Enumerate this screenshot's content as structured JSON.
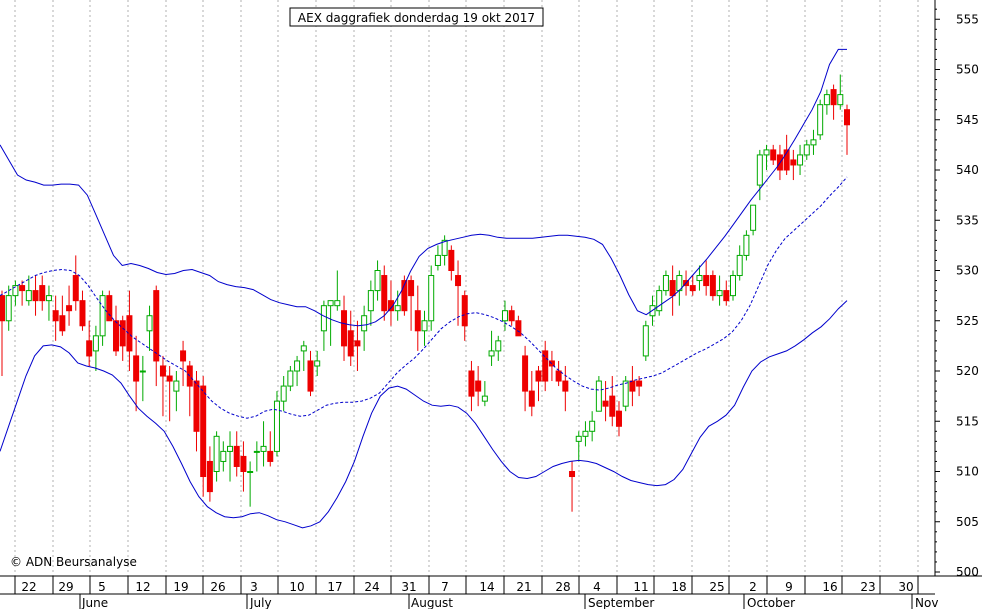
{
  "chart_data": {
    "type": "candlestick",
    "title": "AEX daggrafiek donderdag 19 okt 2017",
    "copyright": "© ADN Beursanalyse",
    "ylim": [
      500,
      557
    ],
    "y_ticks": [
      500,
      505,
      510,
      515,
      520,
      525,
      530,
      535,
      540,
      545,
      550,
      555
    ],
    "grid": true,
    "x_day_labels": [
      "22",
      "29",
      "5",
      "12",
      "19",
      "26",
      "3",
      "10",
      "17",
      "24",
      "31",
      "7",
      "14",
      "21",
      "28",
      "4",
      "11",
      "18",
      "25",
      "2",
      "9",
      "16",
      "23",
      "30"
    ],
    "x_month_labels": [
      "June",
      "July",
      "August",
      "September",
      "October",
      "Nov"
    ],
    "colors": {
      "up": "#00aa00",
      "down": "#ee0000",
      "band": "#0000cc",
      "grid": "#b0b0b0",
      "axis": "#000000"
    },
    "series": [
      {
        "type": "candlestick",
        "candles": [
          [
            527.5,
            528.0,
            519.5,
            525.0
          ],
          [
            525.0,
            528.5,
            524.0,
            527.5
          ],
          [
            527.5,
            529.0,
            526.5,
            528.5
          ],
          [
            528.5,
            529.0,
            526.5,
            528.0
          ],
          [
            527.0,
            529.5,
            526.5,
            528.0
          ],
          [
            528.0,
            529.5,
            525.5,
            527.0
          ],
          [
            528.5,
            529.5,
            526.0,
            527.0
          ],
          [
            527.0,
            528.5,
            525.0,
            527.5
          ],
          [
            526.0,
            527.5,
            523.0,
            525.0
          ],
          [
            525.5,
            527.5,
            523.5,
            524.0
          ],
          [
            526.5,
            528.5,
            524.5,
            526.0
          ],
          [
            529.5,
            531.5,
            526.0,
            527.0
          ],
          [
            527.0,
            528.0,
            524.0,
            524.5
          ],
          [
            523.0,
            525.0,
            520.5,
            521.5
          ],
          [
            522.0,
            524.5,
            520.0,
            523.5
          ],
          [
            523.5,
            528.0,
            522.5,
            527.5
          ],
          [
            527.5,
            528.0,
            525.0,
            525.0
          ],
          [
            525.0,
            526.5,
            521.5,
            522.0
          ],
          [
            525.0,
            525.5,
            521.0,
            522.5
          ],
          [
            525.5,
            528.0,
            520.0,
            522.0
          ],
          [
            521.5,
            523.5,
            516.0,
            519.0
          ],
          [
            520.0,
            521.5,
            517.0,
            520.0
          ],
          [
            524.0,
            526.5,
            522.0,
            525.5
          ],
          [
            528.0,
            528.5,
            518.5,
            521.0
          ],
          [
            520.5,
            521.5,
            515.5,
            519.5
          ],
          [
            519.5,
            520.5,
            515.0,
            519.0
          ],
          [
            518.0,
            520.0,
            516.0,
            519.0
          ],
          [
            522.0,
            523.0,
            518.5,
            521.0
          ],
          [
            520.5,
            521.0,
            515.5,
            518.5
          ],
          [
            519.0,
            520.0,
            512.0,
            514.0
          ],
          [
            518.5,
            519.5,
            507.5,
            509.5
          ],
          [
            511.0,
            512.5,
            507.0,
            508.0
          ],
          [
            510.0,
            514.0,
            509.0,
            513.5
          ],
          [
            511.0,
            513.0,
            510.0,
            512.0
          ],
          [
            512.0,
            514.0,
            509.0,
            512.5
          ],
          [
            512.5,
            514.0,
            509.5,
            510.5
          ],
          [
            511.5,
            513.0,
            508.0,
            510.0
          ],
          [
            510.0,
            511.0,
            506.5,
            510.0
          ],
          [
            512.0,
            513.0,
            510.0,
            512.0
          ],
          [
            512.0,
            515.0,
            510.5,
            512.5
          ],
          [
            512.0,
            514.0,
            510.5,
            511.0
          ],
          [
            512.0,
            518.0,
            511.5,
            517.0
          ],
          [
            517.0,
            519.5,
            516.0,
            518.5
          ],
          [
            518.5,
            520.5,
            518.0,
            520.0
          ],
          [
            520.0,
            521.5,
            518.5,
            521.0
          ],
          [
            522.0,
            523.0,
            520.0,
            522.5
          ],
          [
            521.0,
            522.0,
            517.5,
            518.0
          ],
          [
            520.5,
            522.0,
            519.5,
            521.0
          ],
          [
            524.0,
            527.0,
            522.0,
            526.5
          ],
          [
            526.5,
            527.0,
            522.5,
            527.0
          ],
          [
            526.5,
            530.0,
            526.0,
            527.0
          ],
          [
            526.0,
            527.5,
            521.0,
            522.5
          ],
          [
            524.0,
            526.0,
            520.5,
            521.5
          ],
          [
            523.0,
            525.0,
            520.0,
            522.5
          ],
          [
            524.0,
            526.5,
            522.0,
            525.5
          ],
          [
            526.0,
            529.0,
            524.5,
            528.0
          ],
          [
            528.0,
            531.0,
            527.0,
            530.0
          ],
          [
            529.5,
            530.5,
            525.0,
            526.0
          ],
          [
            527.0,
            529.0,
            524.5,
            526.0
          ],
          [
            526.0,
            528.0,
            525.0,
            526.5
          ],
          [
            529.0,
            529.5,
            525.5,
            526.0
          ],
          [
            529.0,
            529.5,
            524.0,
            527.5
          ],
          [
            526.0,
            528.5,
            522.0,
            524.0
          ],
          [
            524.0,
            526.0,
            522.5,
            525.0
          ],
          [
            525.0,
            530.5,
            524.0,
            529.5
          ],
          [
            530.5,
            532.5,
            530.0,
            531.5
          ],
          [
            531.5,
            533.5,
            530.5,
            533.0
          ],
          [
            532.0,
            532.5,
            529.0,
            530.0
          ],
          [
            529.5,
            531.0,
            524.5,
            528.5
          ],
          [
            527.5,
            528.0,
            523.0,
            524.5
          ],
          [
            520.0,
            521.0,
            516.0,
            517.5
          ],
          [
            519.0,
            520.5,
            516.5,
            518.0
          ],
          [
            517.0,
            519.0,
            516.5,
            517.5
          ],
          [
            521.5,
            524.0,
            520.5,
            522.0
          ],
          [
            522.0,
            523.5,
            521.0,
            523.0
          ],
          [
            525.0,
            527.0,
            524.0,
            526.0
          ],
          [
            526.0,
            526.5,
            524.5,
            525.0
          ],
          [
            525.0,
            525.5,
            523.5,
            523.5
          ],
          [
            521.5,
            522.5,
            516.0,
            518.0
          ],
          [
            518.0,
            520.0,
            515.5,
            516.5
          ],
          [
            520.0,
            520.5,
            517.0,
            519.0
          ],
          [
            522.0,
            523.0,
            518.0,
            519.0
          ],
          [
            521.0,
            522.0,
            519.0,
            520.5
          ],
          [
            520.0,
            521.0,
            518.5,
            519.0
          ],
          [
            519.0,
            520.5,
            516.0,
            518.0
          ],
          [
            510.0,
            511.0,
            506.0,
            509.5
          ],
          [
            513.0,
            514.0,
            511.0,
            513.5
          ],
          [
            513.5,
            515.0,
            512.5,
            514.0
          ],
          [
            514.0,
            516.0,
            513.0,
            515.0
          ],
          [
            516.0,
            519.5,
            516.5,
            519.0
          ],
          [
            517.0,
            519.0,
            515.0,
            516.5
          ],
          [
            517.5,
            519.5,
            514.5,
            515.5
          ],
          [
            516.0,
            517.0,
            513.5,
            514.5
          ],
          [
            516.5,
            519.5,
            516.0,
            519.0
          ],
          [
            519.0,
            520.5,
            516.5,
            518.0
          ],
          [
            519.0,
            519.5,
            517.5,
            518.5
          ],
          [
            521.5,
            525.0,
            521.0,
            524.5
          ],
          [
            525.5,
            527.5,
            524.5,
            526.5
          ],
          [
            526.0,
            528.5,
            525.5,
            528.0
          ],
          [
            528.0,
            530.0,
            527.5,
            529.5
          ],
          [
            529.0,
            530.5,
            525.5,
            527.5
          ],
          [
            528.0,
            530.0,
            526.5,
            529.5
          ],
          [
            529.0,
            530.0,
            527.5,
            528.5
          ],
          [
            528.5,
            529.5,
            527.5,
            528.0
          ],
          [
            529.0,
            530.5,
            528.0,
            529.5
          ],
          [
            529.5,
            531.0,
            527.5,
            528.5
          ],
          [
            529.5,
            530.0,
            527.0,
            527.5
          ],
          [
            527.5,
            529.5,
            526.5,
            528.0
          ],
          [
            528.0,
            529.0,
            526.5,
            527.0
          ],
          [
            527.5,
            530.0,
            527.0,
            529.5
          ],
          [
            529.5,
            532.5,
            529.0,
            531.5
          ],
          [
            531.5,
            534.0,
            531.0,
            533.5
          ],
          [
            534.0,
            536.5,
            533.5,
            536.5
          ],
          [
            538.5,
            542.0,
            537.0,
            541.5
          ],
          [
            541.5,
            542.5,
            540.0,
            542.0
          ],
          [
            542.0,
            542.5,
            540.5,
            541.0
          ],
          [
            541.5,
            542.5,
            539.0,
            540.0
          ],
          [
            542.0,
            543.5,
            539.5,
            540.0
          ],
          [
            541.0,
            542.0,
            539.0,
            540.5
          ],
          [
            540.5,
            542.5,
            539.5,
            541.5
          ],
          [
            541.5,
            543.0,
            541.0,
            542.5
          ],
          [
            542.5,
            544.0,
            541.5,
            543.0
          ],
          [
            543.5,
            547.0,
            543.0,
            546.5
          ],
          [
            546.5,
            548.0,
            545.5,
            547.5
          ],
          [
            548.0,
            548.5,
            545.0,
            546.5
          ],
          [
            546.5,
            549.5,
            546.0,
            547.5
          ],
          [
            546.0,
            546.5,
            541.5,
            544.5
          ]
        ]
      },
      {
        "name": "",
        "type": "line",
        "style": "solid",
        "values": [
          542.5,
          541.0,
          539.5,
          539.0,
          538.8,
          538.5,
          538.5,
          538.6,
          538.6,
          538.5,
          537.5,
          535.5,
          533.5,
          531.5,
          530.5,
          530.7,
          530.5,
          530.2,
          529.8,
          529.6,
          529.7,
          530.0,
          530.1,
          529.8,
          529.5,
          528.9,
          528.6,
          528.4,
          528.3,
          528.1,
          527.6,
          527.1,
          526.8,
          526.6,
          526.4,
          526.4,
          526.0,
          525.5,
          525.1,
          524.8,
          524.6,
          524.5,
          524.6,
          524.9,
          525.5,
          526.5,
          528.0,
          529.9,
          531.4,
          532.2,
          532.6,
          532.9,
          533.1,
          533.3,
          533.5,
          533.6,
          533.5,
          533.3,
          533.2,
          533.2,
          533.2,
          533.2,
          533.3,
          533.4,
          533.5,
          533.5,
          533.4,
          533.3,
          533.1,
          532.6,
          531.2,
          529.5,
          527.6,
          526.0,
          525.6,
          526.2,
          526.8,
          527.4,
          528.2,
          529.2,
          530.2,
          531.2,
          532.3,
          533.4,
          534.6,
          535.8,
          537.0,
          538.1,
          539.2,
          540.3,
          541.6,
          543.0,
          544.5,
          546.0,
          547.8,
          550.5,
          552.0,
          552.0
        ]
      },
      {
        "name": "",
        "type": "line",
        "style": "dashed",
        "values": [
          527.5,
          528.0,
          528.5,
          529.0,
          529.5,
          529.8,
          530.0,
          530.1,
          530.0,
          529.5,
          528.5,
          527.2,
          526.0,
          525.0,
          524.2,
          523.4,
          522.8,
          522.2,
          521.6,
          521.0,
          520.5,
          520.0,
          519.0,
          518.0,
          517.0,
          516.3,
          515.8,
          515.5,
          515.3,
          515.5,
          516.0,
          516.2,
          516.0,
          515.7,
          515.5,
          515.6,
          516.1,
          516.6,
          516.8,
          516.9,
          516.9,
          517.0,
          517.3,
          517.8,
          518.8,
          519.8,
          520.6,
          521.3,
          522.2,
          523.2,
          524.2,
          524.9,
          525.4,
          525.7,
          525.8,
          525.6,
          525.3,
          524.9,
          524.4,
          523.8,
          523.0,
          522.1,
          521.2,
          520.3,
          519.6,
          519.0,
          518.5,
          518.2,
          518.1,
          518.3,
          518.6,
          518.8,
          519.1,
          519.3,
          519.5,
          519.8,
          520.3,
          520.8,
          521.3,
          521.8,
          522.2,
          522.7,
          523.2,
          523.9,
          525.0,
          526.5,
          528.5,
          530.5,
          532.0,
          533.2,
          534.0,
          534.8,
          535.6,
          536.4,
          537.4,
          538.3,
          539.3
        ]
      },
      {
        "name": "",
        "type": "line",
        "style": "solid",
        "values": [
          512.0,
          514.5,
          517.0,
          519.5,
          521.5,
          522.5,
          522.6,
          522.4,
          521.8,
          520.8,
          520.5,
          520.3,
          520.0,
          519.6,
          518.8,
          517.5,
          516.3,
          515.5,
          514.8,
          514.0,
          512.5,
          510.8,
          509.0,
          507.5,
          506.5,
          505.9,
          505.5,
          505.4,
          505.5,
          505.8,
          505.9,
          505.6,
          505.2,
          505.0,
          504.7,
          504.4,
          504.6,
          505.0,
          506.0,
          507.4,
          509.0,
          511.0,
          513.5,
          515.8,
          517.5,
          518.3,
          518.5,
          518.2,
          517.6,
          517.0,
          516.6,
          516.5,
          516.6,
          516.4,
          515.8,
          514.8,
          513.5,
          512.2,
          511.0,
          510.0,
          509.4,
          509.3,
          509.5,
          510.0,
          510.5,
          510.8,
          511.0,
          511.1,
          511.0,
          510.8,
          510.4,
          510.0,
          509.5,
          509.1,
          508.9,
          508.7,
          508.6,
          508.7,
          509.2,
          510.2,
          511.8,
          513.4,
          514.5,
          515.0,
          515.6,
          516.6,
          518.4,
          520.0,
          520.9,
          521.4,
          521.7,
          522.0,
          522.5,
          523.1,
          523.8,
          524.4,
          525.2,
          526.2,
          527.0
        ]
      }
    ]
  }
}
